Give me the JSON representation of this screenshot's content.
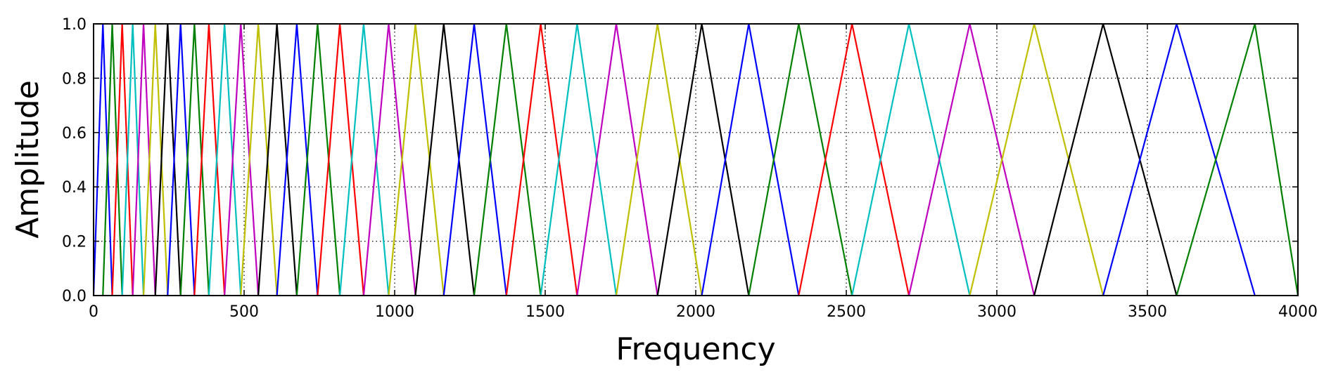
{
  "chart_data": {
    "type": "line",
    "title": "",
    "xlabel": "Frequency",
    "ylabel": "Amplitude",
    "xlim": [
      0,
      4000
    ],
    "ylim": [
      0.0,
      1.0
    ],
    "x_ticks": [
      0,
      500,
      1000,
      1500,
      2000,
      2500,
      3000,
      3500,
      4000
    ],
    "x_tick_labels": [
      "0",
      "500",
      "1000",
      "1500",
      "2000",
      "2500",
      "3000",
      "3500",
      "4000"
    ],
    "y_ticks": [
      0.0,
      0.2,
      0.4,
      0.6,
      0.8,
      1.0
    ],
    "y_tick_labels": [
      "0.0",
      "0.2",
      "0.4",
      "0.6",
      "0.8",
      "1.0"
    ],
    "grid": true,
    "grid_style": "dotted",
    "legend": "none",
    "series_description": "triangular mel filterbank; each filter rises from the previous center frequency to a peak of 1.0 and falls to the next center frequency",
    "filter_points_hz": [
      0,
      31,
      62,
      95,
      130,
      166,
      205,
      246,
      289,
      335,
      383,
      435,
      489,
      547,
      609,
      675,
      744,
      818,
      897,
      980,
      1069,
      1163,
      1264,
      1371,
      1485,
      1606,
      1736,
      1873,
      2020,
      2176,
      2342,
      2519,
      2708,
      2910,
      3124,
      3353,
      3597,
      3857,
      4000
    ],
    "peak_value": 1.0,
    "color_cycle": [
      "#0000ff",
      "#008000",
      "#ff0000",
      "#00bfbf",
      "#bf00bf",
      "#bfbf00",
      "#000000"
    ]
  }
}
